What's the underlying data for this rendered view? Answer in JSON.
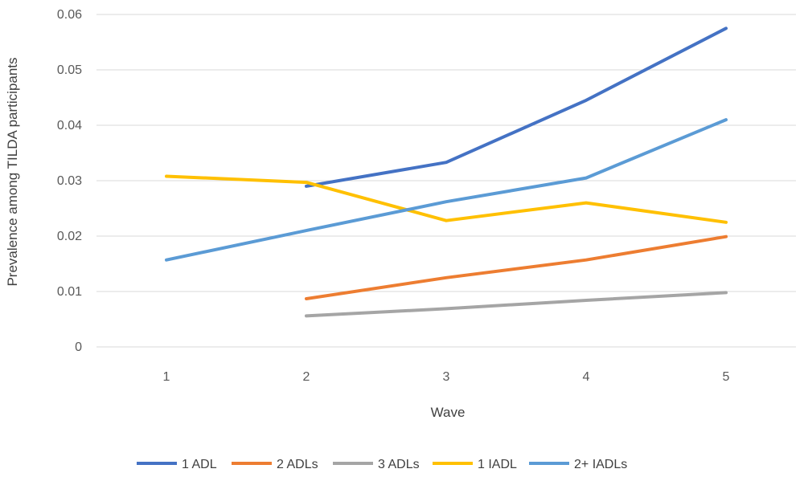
{
  "chart_data": {
    "type": "line",
    "title": "",
    "xlabel": "Wave",
    "ylabel": "Prevalence among TILDA participants",
    "x": [
      1,
      2,
      3,
      4,
      5
    ],
    "x_tick_labels": [
      "1",
      "2",
      "3",
      "4",
      "5"
    ],
    "ylim": [
      0,
      0.06
    ],
    "y_ticks": [
      0,
      0.01,
      0.02,
      0.03,
      0.04,
      0.05,
      0.06
    ],
    "y_tick_labels": [
      "0",
      "0.01",
      "0.02",
      "0.03",
      "0.04",
      "0.05",
      "0.06"
    ],
    "grid": "horizontal",
    "legend_position": "bottom",
    "series": [
      {
        "name": "1 ADL",
        "color": "#4472C4",
        "values": [
          null,
          0.029,
          0.0333,
          0.0445,
          0.0575
        ]
      },
      {
        "name": "2 ADLs",
        "color": "#ED7D31",
        "values": [
          null,
          0.0087,
          0.0125,
          0.0157,
          0.0199
        ]
      },
      {
        "name": "3 ADLs",
        "color": "#A5A5A5",
        "values": [
          null,
          0.0056,
          0.0069,
          0.0084,
          0.0098
        ]
      },
      {
        "name": "1 IADL",
        "color": "#FFC000",
        "values": [
          0.0308,
          0.0297,
          0.0228,
          0.026,
          0.0225
        ]
      },
      {
        "name": "2+ IADLs",
        "color": "#5B9BD5",
        "values": [
          0.0157,
          0.021,
          0.0262,
          0.0305,
          0.041
        ]
      }
    ]
  }
}
